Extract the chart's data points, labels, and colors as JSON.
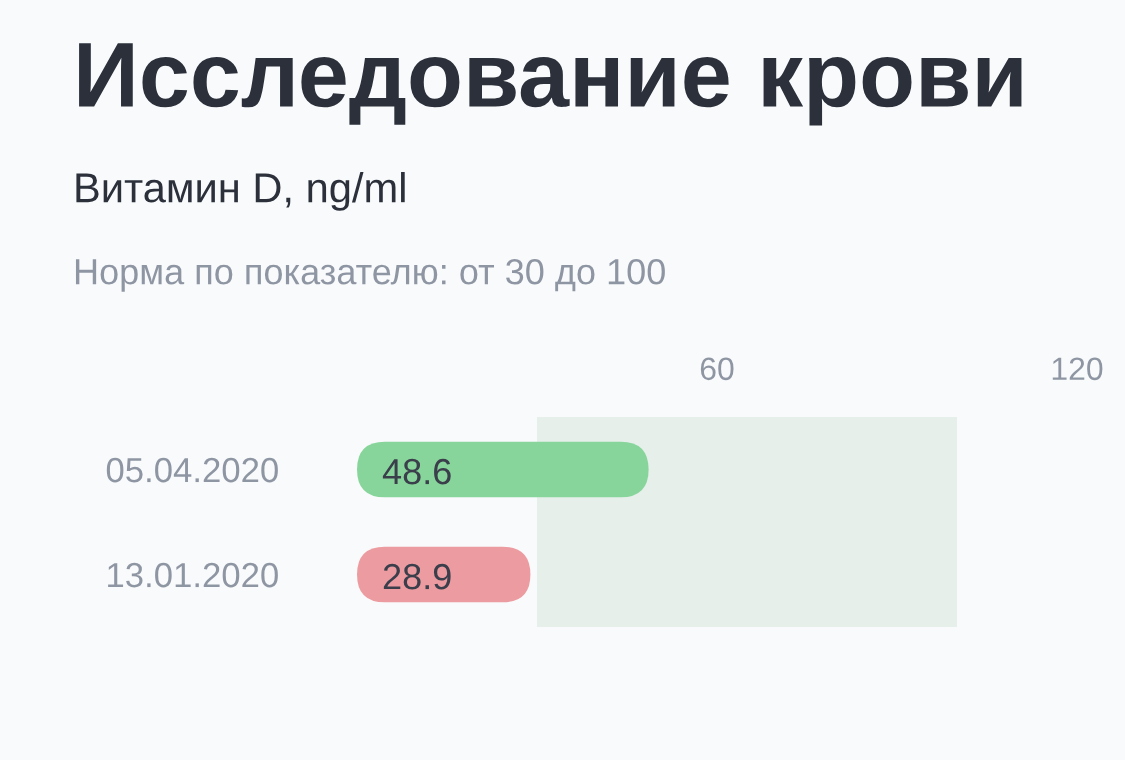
{
  "chart_data": {
    "type": "bar",
    "orientation": "horizontal",
    "title": "Исследование крови",
    "subtitle": "Витамин D, ng/ml",
    "annotations": [
      "Норма по показателю: от 30 до 100"
    ],
    "categories": [
      "05.04.2020",
      "13.01.2020"
    ],
    "values": [
      48.6,
      28.9
    ],
    "colors": [
      "#88d59b",
      "#ec9ca0"
    ],
    "data_labels": true,
    "xlim": [
      0,
      120
    ],
    "xticks": [
      60,
      120
    ],
    "bands": [
      {
        "axis": "x",
        "from": 30,
        "to": 100,
        "color": "#e6efea"
      }
    ],
    "grid": false
  }
}
